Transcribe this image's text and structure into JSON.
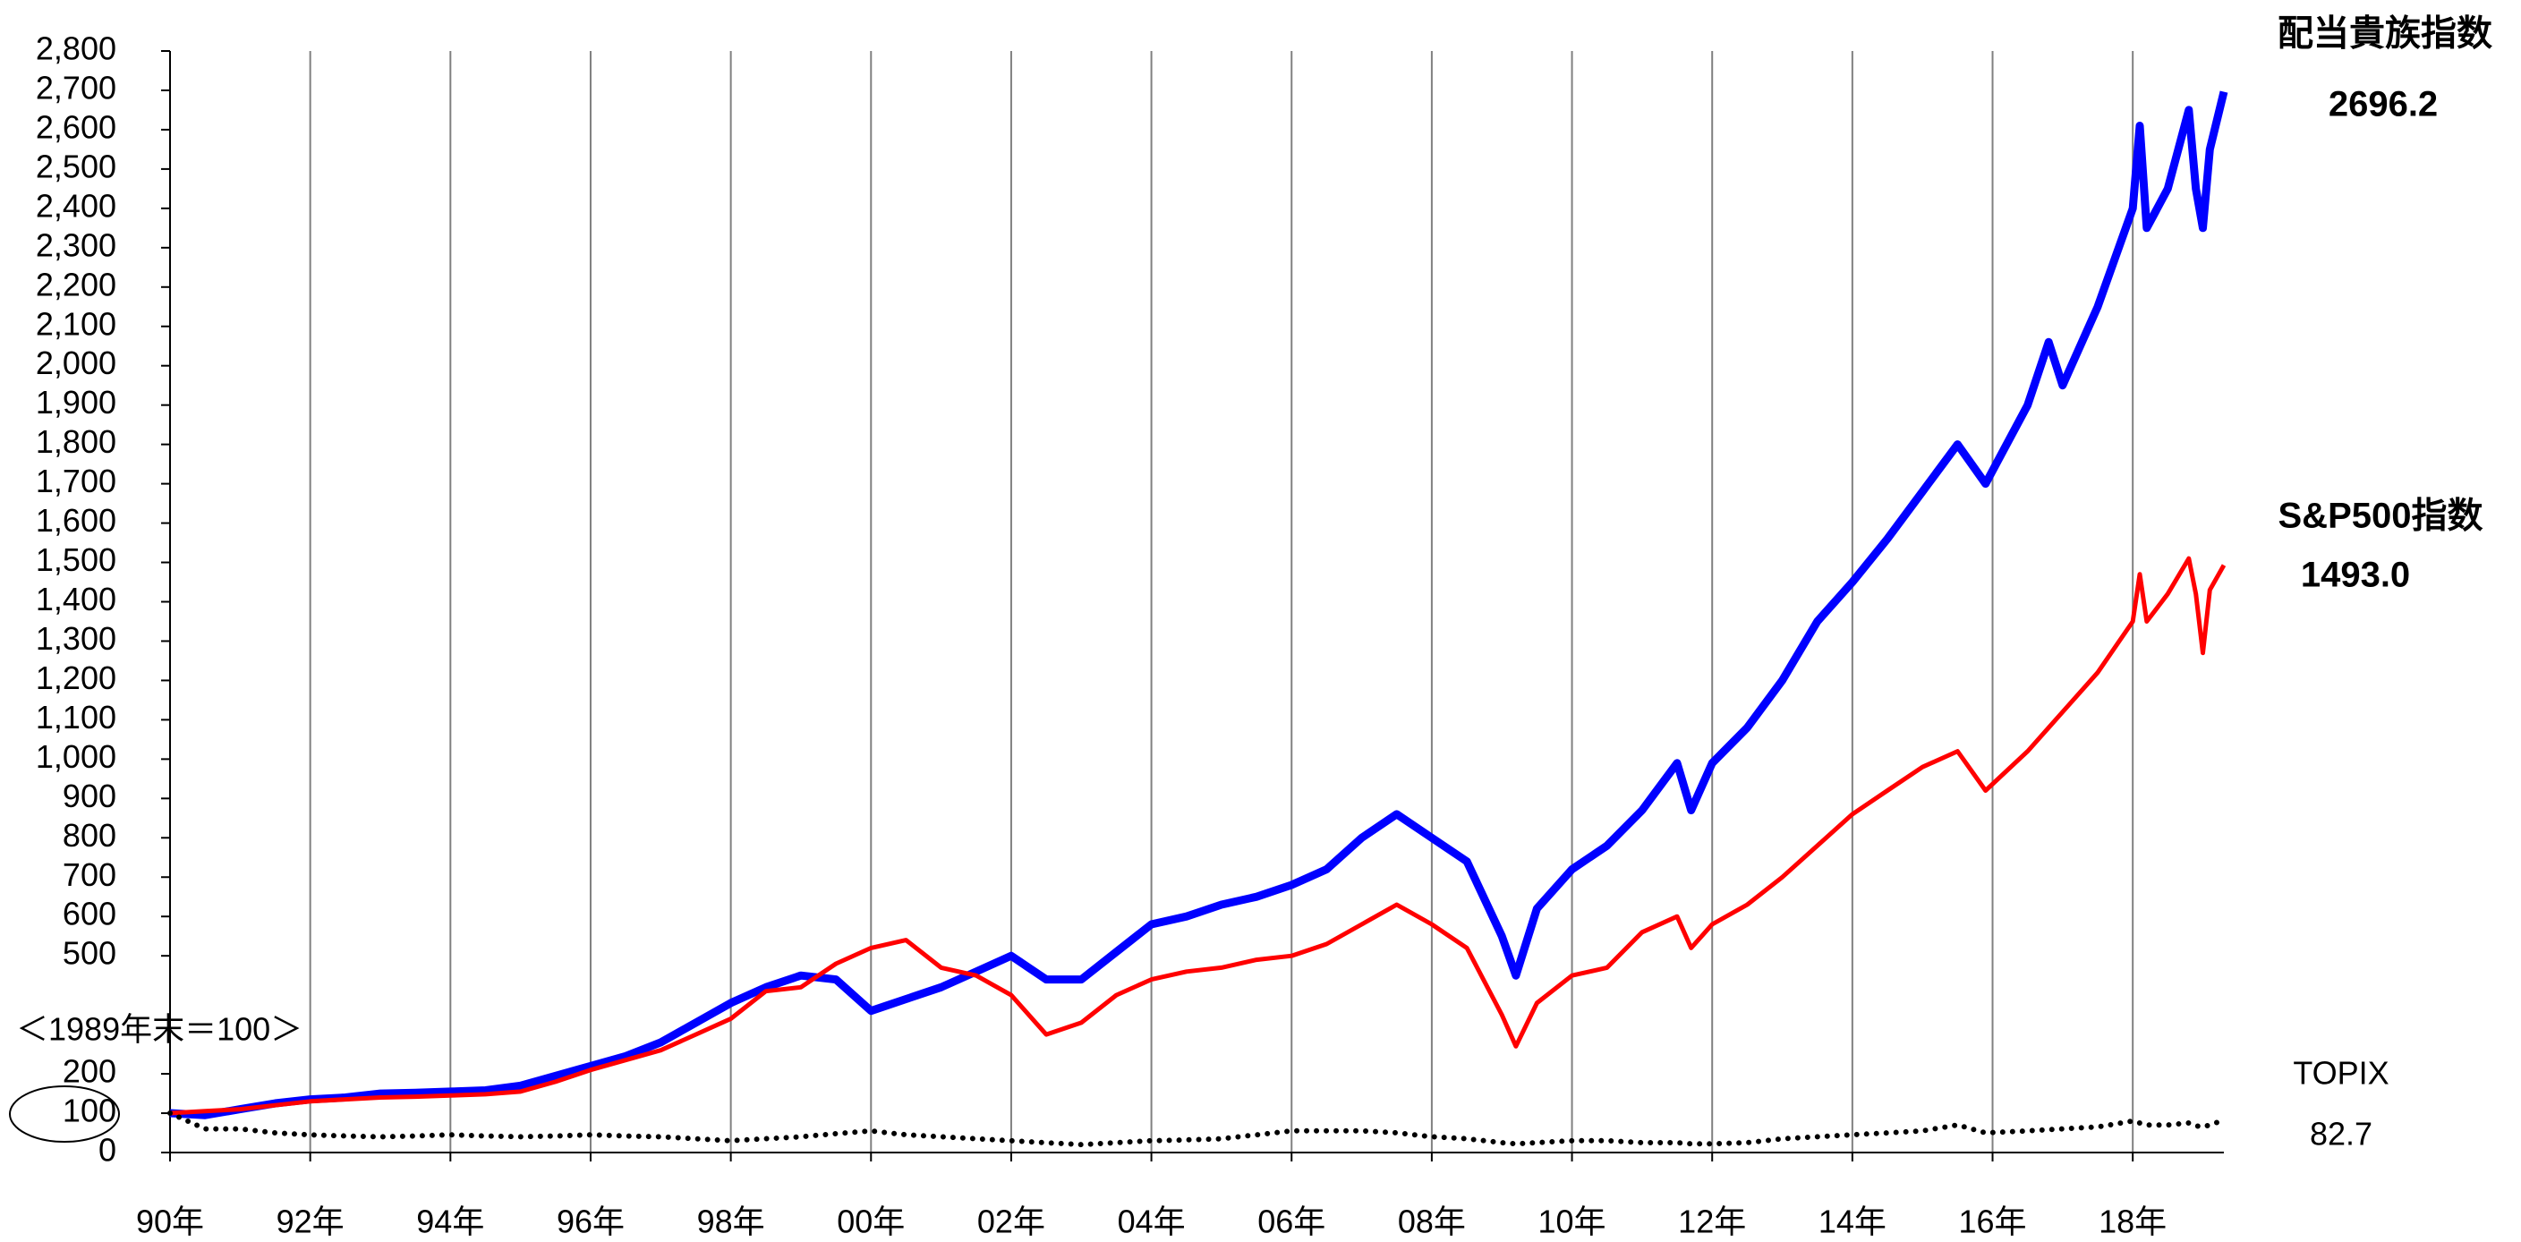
{
  "chart_data": {
    "type": "line",
    "annotation": "＜1989年末＝100＞",
    "x": [
      1990,
      1990.5,
      1991,
      1991.5,
      1992,
      1992.5,
      1993,
      1993.5,
      1994,
      1994.5,
      1995,
      1995.5,
      1996,
      1996.5,
      1997,
      1997.5,
      1998,
      1998.5,
      1999,
      1999.5,
      2000,
      2000.5,
      2001,
      2001.5,
      2002,
      2002.5,
      2003,
      2003.5,
      2004,
      2004.5,
      2005,
      2005.5,
      2006,
      2006.5,
      2007,
      2007.5,
      2008,
      2008.5,
      2009,
      2009.2,
      2009.5,
      2010,
      2010.5,
      2011,
      2011.5,
      2011.7,
      2012,
      2012.5,
      2013,
      2013.5,
      2014,
      2014.5,
      2015,
      2015.5,
      2015.9,
      2016.5,
      2016.8,
      2017,
      2017.5,
      2018,
      2018.1,
      2018.2,
      2018.5,
      2018.8,
      2018.9,
      2019,
      2019.1,
      2019.3
    ],
    "series": [
      {
        "name": "配当貴族指数",
        "color": "#0000ff",
        "value_labels": {
          "67": "2696.2"
        },
        "values": [
          100,
          95,
          110,
          125,
          135,
          140,
          150,
          152,
          155,
          158,
          170,
          195,
          220,
          245,
          280,
          330,
          380,
          420,
          450,
          440,
          360,
          390,
          420,
          460,
          500,
          440,
          440,
          510,
          580,
          600,
          630,
          650,
          680,
          720,
          800,
          860,
          800,
          740,
          550,
          450,
          620,
          720,
          780,
          870,
          990,
          870,
          990,
          1080,
          1200,
          1350,
          1450,
          1560,
          1680,
          1800,
          1700,
          1900,
          2060,
          1950,
          2150,
          2400,
          2610,
          2350,
          2450,
          2650,
          2450,
          2350,
          2550,
          2696.2
        ]
      },
      {
        "name": "S&P500指数",
        "color": "#ff0000",
        "value_labels": {
          "67": "1493.0"
        },
        "values": [
          100,
          105,
          110,
          120,
          130,
          135,
          140,
          142,
          145,
          148,
          155,
          180,
          210,
          235,
          260,
          300,
          340,
          410,
          420,
          480,
          520,
          540,
          470,
          450,
          400,
          300,
          330,
          400,
          440,
          460,
          470,
          490,
          500,
          530,
          580,
          630,
          580,
          520,
          350,
          270,
          380,
          450,
          470,
          560,
          600,
          520,
          580,
          630,
          700,
          780,
          860,
          920,
          980,
          1020,
          920,
          1020,
          1080,
          1120,
          1220,
          1350,
          1470,
          1350,
          1420,
          1510,
          1420,
          1270,
          1430,
          1493.0
        ]
      },
      {
        "name": "TOPIX",
        "color": "#000000",
        "style": "dotted",
        "values": [
          100,
          60,
          60,
          50,
          45,
          42,
          40,
          42,
          45,
          42,
          40,
          42,
          45,
          42,
          40,
          35,
          30,
          35,
          40,
          48,
          55,
          45,
          40,
          35,
          30,
          25,
          20,
          25,
          30,
          32,
          35,
          45,
          55,
          55,
          55,
          50,
          40,
          35,
          25,
          22,
          25,
          30,
          30,
          25,
          25,
          22,
          22,
          25,
          35,
          40,
          45,
          50,
          55,
          70,
          50,
          55,
          58,
          60,
          65,
          80,
          75,
          70,
          70,
          75,
          68,
          65,
          70,
          82.7
        ]
      }
    ],
    "xlim": [
      1990,
      2019.3
    ],
    "xticks": [
      {
        "value": 1990,
        "label": "90年"
      },
      {
        "value": 1992,
        "label": "92年"
      },
      {
        "value": 1994,
        "label": "94年"
      },
      {
        "value": 1996,
        "label": "96年"
      },
      {
        "value": 1998,
        "label": "98年"
      },
      {
        "value": 2000,
        "label": "00年"
      },
      {
        "value": 2002,
        "label": "02年"
      },
      {
        "value": 2004,
        "label": "04年"
      },
      {
        "value": 2006,
        "label": "06年"
      },
      {
        "value": 2008,
        "label": "08年"
      },
      {
        "value": 2010,
        "label": "10年"
      },
      {
        "value": 2012,
        "label": "12年"
      },
      {
        "value": 2014,
        "label": "14年"
      },
      {
        "value": 2016,
        "label": "16年"
      },
      {
        "value": 2018,
        "label": "18年"
      }
    ],
    "ylim": [
      0,
      2800
    ],
    "yticks": [
      0,
      100,
      200,
      500,
      600,
      700,
      800,
      900,
      {
        "value": 1000,
        "label": "1,000"
      },
      {
        "value": 1100,
        "label": "1,100"
      },
      {
        "value": 1200,
        "label": "1,200"
      },
      {
        "value": 1300,
        "label": "1,300"
      },
      {
        "value": 1400,
        "label": "1,400"
      },
      {
        "value": 1500,
        "label": "1,500"
      },
      {
        "value": 1600,
        "label": "1,600"
      },
      {
        "value": 1700,
        "label": "1,700"
      },
      {
        "value": 1800,
        "label": "1,800"
      },
      {
        "value": 1900,
        "label": "1,900"
      },
      {
        "value": 2000,
        "label": "2,000"
      },
      {
        "value": 2100,
        "label": "2,100"
      },
      {
        "value": 2200,
        "label": "2,200"
      },
      {
        "value": 2300,
        "label": "2,300"
      },
      {
        "value": 2400,
        "label": "2,400"
      },
      {
        "value": 2500,
        "label": "2,500"
      },
      {
        "value": 2600,
        "label": "2,600"
      },
      {
        "value": 2700,
        "label": "2,700"
      },
      {
        "value": 2800,
        "label": "2,800"
      }
    ],
    "grid": "x"
  }
}
